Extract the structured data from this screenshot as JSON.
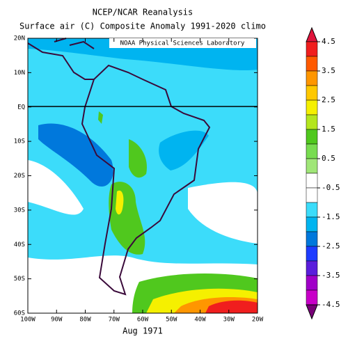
{
  "title": [
    "NCEP/NCAR Reanalysis",
    "Surface air (C) Composite Anomaly 1991-2020 climo"
  ],
  "credit": "NOAA Physical Sciences Laboratory",
  "date": "Aug 1971",
  "lat_labels": [
    "20N",
    "10N",
    "EQ",
    "10S",
    "20S",
    "30S",
    "40S",
    "50S",
    "60S"
  ],
  "lon_labels": [
    "100W",
    "90W",
    "80W",
    "70W",
    "60W",
    "50W",
    "40W",
    "30W",
    "20W"
  ],
  "colorbar": {
    "lim": [
      -4.5,
      4.5
    ],
    "ticks": [
      4.5,
      3.5,
      2.5,
      1.5,
      0.5,
      -0.5,
      -1.5,
      -2.5,
      -3.5,
      -4.5
    ],
    "colors": [
      "#e0143c",
      "#f01e1e",
      "#ff5a00",
      "#ff9600",
      "#ffc800",
      "#f5f000",
      "#b4e61e",
      "#50c81e",
      "#78dc50",
      "#a0e678",
      "#ffffff",
      "#ffffff",
      "#3cdcfa",
      "#00b4f0",
      "#0078dc",
      "#1e3cff",
      "#5a1edc",
      "#a000c8",
      "#c800c8",
      "#780078"
    ]
  }
}
